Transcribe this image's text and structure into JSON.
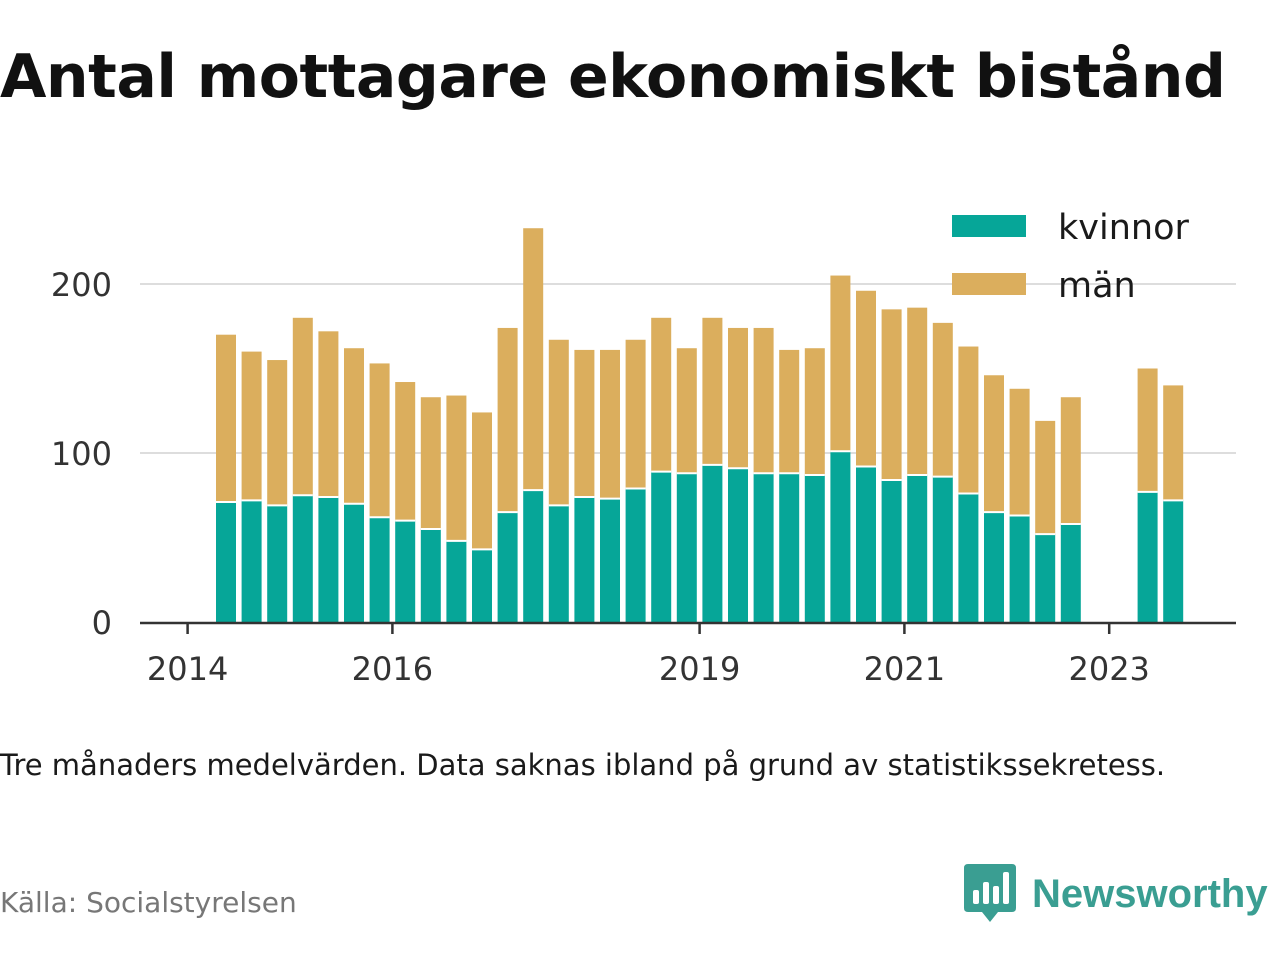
{
  "title": "Antal mottagare ekonomiskt bistånd",
  "note": "Tre månaders medelvärden. Data saknas ibland på grund av statistikssekretess.",
  "source": "Källa: Socialstyrelsen",
  "brand": {
    "name": "Newsworthy",
    "color": "#3a9e92",
    "icon": "bar-chart-speech-bubble-icon"
  },
  "chart_data": {
    "type": "bar",
    "stacked": true,
    "x": [
      "2014-Q2",
      "2014-Q3",
      "2014-Q4",
      "2015-Q1",
      "2015-Q2",
      "2015-Q3",
      "2015-Q4",
      "2016-Q1",
      "2016-Q2",
      "2016-Q3",
      "2016-Q4",
      "2017-Q1",
      "2017-Q2",
      "2017-Q3",
      "2017-Q4",
      "2018-Q1",
      "2018-Q2",
      "2018-Q3",
      "2018-Q4",
      "2019-Q1",
      "2019-Q2",
      "2019-Q3",
      "2019-Q4",
      "2020-Q1",
      "2020-Q2",
      "2020-Q3",
      "2020-Q4",
      "2021-Q1",
      "2021-Q2",
      "2021-Q3",
      "2021-Q4",
      "2022-Q1",
      "2022-Q2",
      "2022-Q3",
      "2022-Q4",
      "2023-Q1",
      "2023-Q2",
      "2023-Q3",
      "2023-Q4"
    ],
    "series": [
      {
        "name": "kvinnor",
        "color": "#06a698",
        "values": [
          71,
          72,
          69,
          75,
          74,
          70,
          62,
          60,
          55,
          48,
          43,
          65,
          78,
          69,
          74,
          73,
          79,
          89,
          88,
          93,
          91,
          88,
          88,
          87,
          101,
          92,
          84,
          87,
          86,
          76,
          65,
          63,
          52,
          58,
          null,
          null,
          77,
          72,
          null
        ]
      },
      {
        "name": "män",
        "color": "#dbae5d",
        "values": [
          99,
          88,
          86,
          105,
          98,
          92,
          91,
          82,
          78,
          86,
          81,
          109,
          155,
          98,
          87,
          88,
          88,
          91,
          74,
          87,
          83,
          86,
          73,
          75,
          104,
          104,
          101,
          99,
          91,
          87,
          81,
          75,
          67,
          75,
          null,
          null,
          73,
          68,
          null
        ]
      }
    ],
    "xticks": [
      "2014",
      "2016",
      "2019",
      "2021",
      "2023"
    ],
    "yticks": [
      0,
      100,
      200
    ],
    "ylim": [
      0,
      240
    ],
    "xlabel": "",
    "ylabel": "",
    "grid": "horizontal",
    "legend_position": "top-right"
  }
}
